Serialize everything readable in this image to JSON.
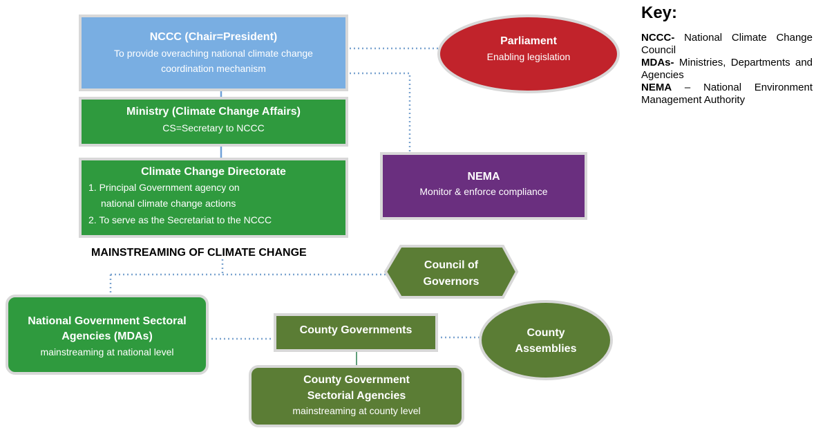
{
  "nodes": [
    {
      "title": "NCCC (Chair=President)",
      "lines": [
        "To provide overaching national climate change",
        "coordination mechanism"
      ]
    },
    {
      "title": "Parliament",
      "lines": [
        "Enabling legislation"
      ]
    },
    {
      "title": "Ministry (Climate Change Affairs)",
      "lines": [
        "CS=Secretary to NCCC"
      ]
    },
    {
      "title": "Climate Change Directorate",
      "lines": [
        "1. Principal Government agency on",
        "national climate change actions",
        "2. To serve as the Secretariat to the NCCC"
      ]
    },
    {
      "title": "NEMA",
      "lines": [
        "Monitor & enforce compliance"
      ]
    },
    {
      "title": "Council of",
      "lines": [
        "Governors"
      ]
    },
    {
      "title": "National Government Sectoral",
      "lines": [
        "Agencies (MDAs)",
        "mainstreaming at national level"
      ]
    },
    {
      "title": "County Governments",
      "lines": []
    },
    {
      "title": "County",
      "lines": [
        "Assemblies"
      ]
    },
    {
      "title": "County Government",
      "lines": [
        "Sectorial Agencies",
        "mainstreaming at county level"
      ]
    }
  ],
  "heading": "MAINSTREAMING OF CLIMATE CHANGE",
  "key": {
    "title": "Key:",
    "entries": [
      {
        "term": "NCCC-",
        "definition": "National Climate Change Council"
      },
      {
        "term": "MDAs-",
        "definition": "Ministries, Departments and Agencies"
      },
      {
        "term": "NEMA",
        "definition": "– National Environment Management Authority"
      }
    ]
  }
}
